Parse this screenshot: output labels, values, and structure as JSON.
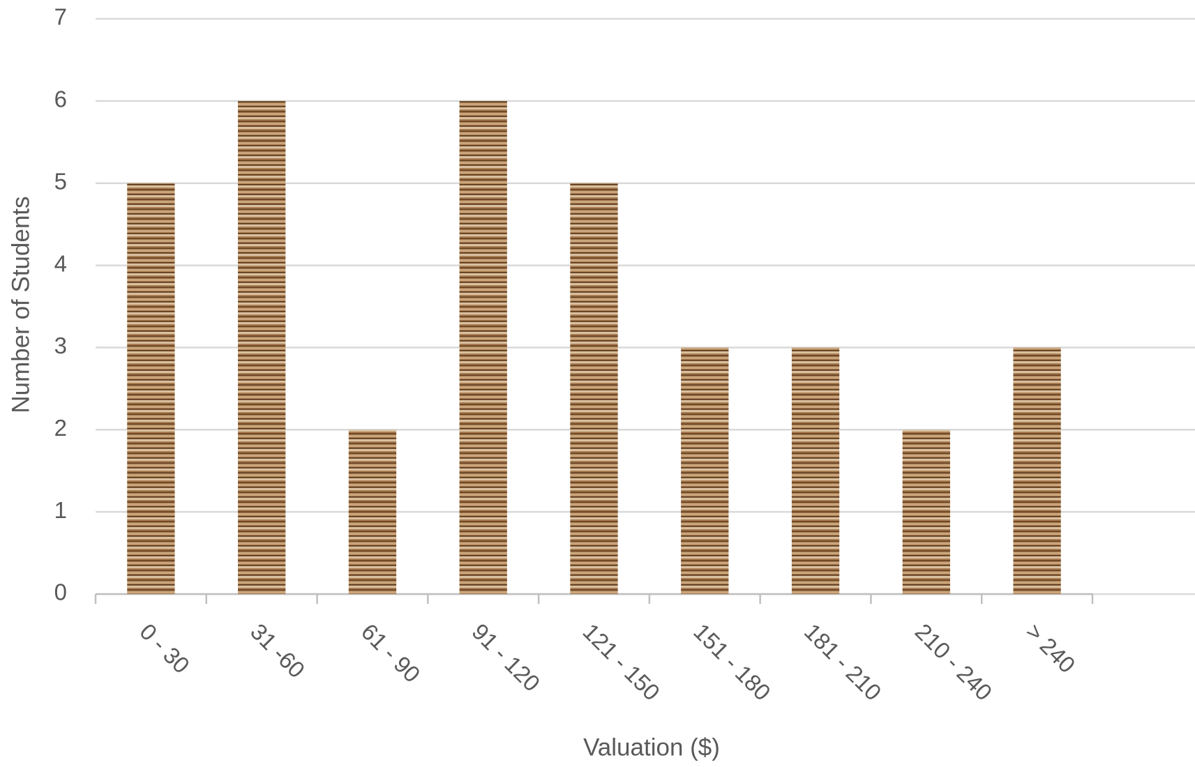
{
  "chart_data": {
    "type": "bar",
    "x_label": "Valuation ($)",
    "y_label": "Number of Students",
    "categories": [
      "0 - 30",
      "31 -60",
      "61 - 90",
      "91 - 120",
      "121 - 150",
      "151 - 180",
      "181 - 210",
      "210 - 240",
      "> 240"
    ],
    "values": [
      5,
      6,
      2,
      6,
      5,
      3,
      3,
      2,
      3
    ],
    "color": "#a97b4f",
    "ylim": [
      0,
      7
    ],
    "yticks": [
      0,
      1,
      2,
      3,
      4,
      5,
      6,
      7
    ],
    "grid": true
  }
}
